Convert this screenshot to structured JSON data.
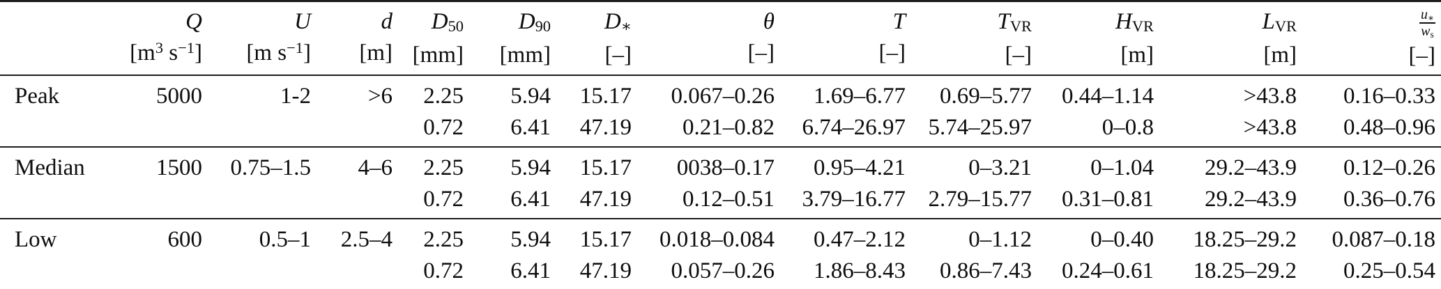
{
  "table": {
    "header": {
      "columns": [
        {
          "id": "row-label",
          "symbol": "",
          "unit": ""
        },
        {
          "id": "Q",
          "symbol": "<i>Q</i>",
          "unit": "[m<sup>3</sup> s<sup>−1</sup>]"
        },
        {
          "id": "U",
          "symbol": "<i>U</i>",
          "unit": "[m s<sup>−1</sup>]"
        },
        {
          "id": "d",
          "symbol": "<i>d</i>",
          "unit": "[m]"
        },
        {
          "id": "D50",
          "symbol": "<i>D</i><sub>50</sub>",
          "unit": "[mm]"
        },
        {
          "id": "D90",
          "symbol": "<i>D</i><sub>90</sub>",
          "unit": "[mm]"
        },
        {
          "id": "Dstar",
          "symbol": "<i>D</i><sub>∗</sub>",
          "unit": "[–]"
        },
        {
          "id": "theta",
          "symbol": "<i>θ</i>",
          "unit": "[–]"
        },
        {
          "id": "T",
          "symbol": "<i>T</i>",
          "unit": "[–]"
        },
        {
          "id": "TVR",
          "symbol": "<i>T</i><sub>VR</sub>",
          "unit": "[–]"
        },
        {
          "id": "HVR",
          "symbol": "<i>H</i><sub>VR</sub>",
          "unit": "[m]"
        },
        {
          "id": "LVR",
          "symbol": "<i>L</i><sub>VR</sub>",
          "unit": "[m]"
        },
        {
          "id": "ustar-ws-ratio",
          "symbol": "<span class='frac'><span class='fnum'><i>u</i><sub>∗</sub></span><span class='fden'><i>w</i><sub>s</sub></span></span>",
          "unit": "[–]"
        }
      ]
    },
    "sections": [
      {
        "label": "Peak",
        "rows": [
          [
            "5000",
            "1-2",
            ">6",
            "2.25",
            "5.94",
            "15.17",
            "0.067–0.26",
            "1.69–6.77",
            "0.69–5.77",
            "0.44–1.14",
            ">43.8",
            "0.16–0.33"
          ],
          [
            "",
            "",
            "",
            "0.72",
            "6.41",
            "47.19",
            "0.21–0.82",
            "6.74–26.97",
            "5.74–25.97",
            "0–0.8",
            ">43.8",
            "0.48–0.96"
          ]
        ]
      },
      {
        "label": "Median",
        "rows": [
          [
            "1500",
            "0.75–1.5",
            "4–6",
            "2.25",
            "5.94",
            "15.17",
            "0038–0.17",
            "0.95–4.21",
            "0–3.21",
            "0–1.04",
            "29.2–43.9",
            "0.12–0.26"
          ],
          [
            "",
            "",
            "",
            "0.72",
            "6.41",
            "47.19",
            "0.12–0.51",
            "3.79–16.77",
            "2.79–15.77",
            "0.31–0.81",
            "29.2–43.9",
            "0.36–0.76"
          ]
        ]
      },
      {
        "label": "Low",
        "rows": [
          [
            "600",
            "0.5–1",
            "2.5–4",
            "2.25",
            "5.94",
            "15.17",
            "0.018–0.084",
            "0.47–2.12",
            "0–1.12",
            "0–0.40",
            "18.25–29.2",
            "0.087–0.18"
          ],
          [
            "",
            "",
            "",
            "0.72",
            "6.41",
            "47.19",
            "0.057–0.26",
            "1.86–8.43",
            "0.86–7.43",
            "0.24–0.61",
            "18.25–29.2",
            "0.25–0.54"
          ]
        ]
      }
    ]
  }
}
